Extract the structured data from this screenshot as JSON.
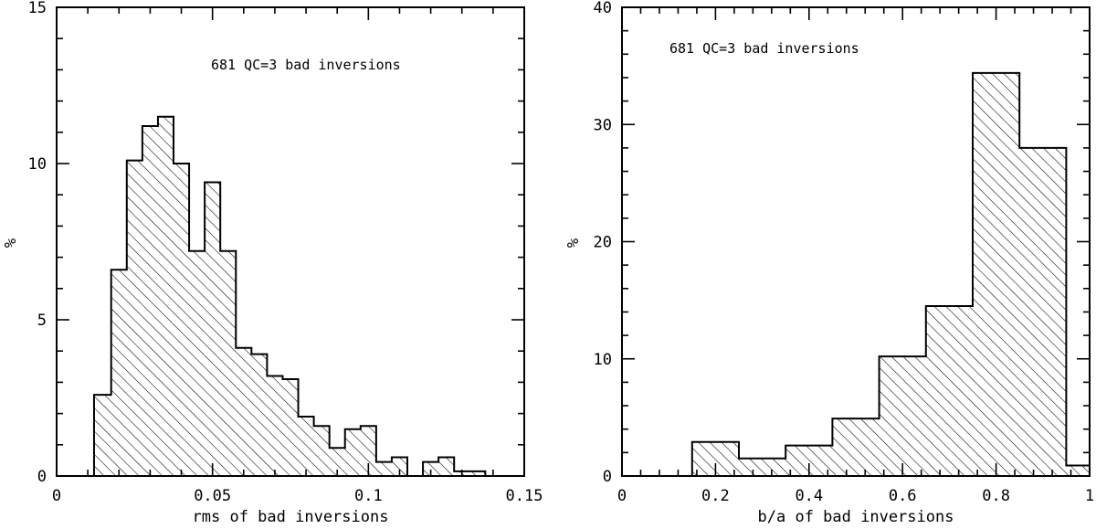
{
  "chart_data": [
    {
      "type": "histogram",
      "annotation": "681 QC=3  bad inversions",
      "xlabel": "rms of bad inversions",
      "ylabel": "%",
      "xlim": [
        0,
        0.15
      ],
      "ylim": [
        0,
        15
      ],
      "xticks": [
        0,
        0.05,
        0.1,
        0.15
      ],
      "xtick_labels": [
        "0",
        "0.05",
        "0.1",
        "0.15"
      ],
      "yticks": [
        0,
        5,
        10,
        15
      ],
      "ytick_labels": [
        "0",
        "5",
        "10",
        "15"
      ],
      "bins": [
        {
          "x0": 0.012,
          "x1": 0.0175,
          "value": 2.6
        },
        {
          "x0": 0.0175,
          "x1": 0.0225,
          "value": 6.6
        },
        {
          "x0": 0.0225,
          "x1": 0.0275,
          "value": 10.1
        },
        {
          "x0": 0.0275,
          "x1": 0.0325,
          "value": 11.2
        },
        {
          "x0": 0.0325,
          "x1": 0.0375,
          "value": 11.5
        },
        {
          "x0": 0.0375,
          "x1": 0.0425,
          "value": 10.0
        },
        {
          "x0": 0.0425,
          "x1": 0.0475,
          "value": 7.2
        },
        {
          "x0": 0.0475,
          "x1": 0.0525,
          "value": 9.4
        },
        {
          "x0": 0.0525,
          "x1": 0.0575,
          "value": 7.2
        },
        {
          "x0": 0.0575,
          "x1": 0.0625,
          "value": 4.1
        },
        {
          "x0": 0.0625,
          "x1": 0.0675,
          "value": 3.9
        },
        {
          "x0": 0.0675,
          "x1": 0.0725,
          "value": 3.2
        },
        {
          "x0": 0.0725,
          "x1": 0.0775,
          "value": 3.1
        },
        {
          "x0": 0.0775,
          "x1": 0.0825,
          "value": 1.9
        },
        {
          "x0": 0.0825,
          "x1": 0.0875,
          "value": 1.6
        },
        {
          "x0": 0.0875,
          "x1": 0.0925,
          "value": 0.9
        },
        {
          "x0": 0.0925,
          "x1": 0.0975,
          "value": 1.5
        },
        {
          "x0": 0.0975,
          "x1": 0.1025,
          "value": 1.6
        },
        {
          "x0": 0.1025,
          "x1": 0.1075,
          "value": 0.45
        },
        {
          "x0": 0.1075,
          "x1": 0.1125,
          "value": 0.6
        },
        {
          "x0": 0.1125,
          "x1": 0.1175,
          "value": 0.0
        },
        {
          "x0": 0.1175,
          "x1": 0.1225,
          "value": 0.45
        },
        {
          "x0": 0.1225,
          "x1": 0.1275,
          "value": 0.6
        },
        {
          "x0": 0.1275,
          "x1": 0.1325,
          "value": 0.15
        },
        {
          "x0": 0.1325,
          "x1": 0.1375,
          "value": 0.15
        }
      ]
    },
    {
      "type": "histogram",
      "annotation": "681 QC=3  bad inversions",
      "xlabel": "b/a of bad inversions",
      "ylabel": "%",
      "xlim": [
        0,
        1
      ],
      "ylim": [
        0,
        40
      ],
      "xticks": [
        0,
        0.2,
        0.4,
        0.6,
        0.8,
        1
      ],
      "xtick_labels": [
        "0",
        "0.2",
        "0.4",
        "0.6",
        "0.8",
        "1"
      ],
      "yticks": [
        0,
        10,
        20,
        30,
        40
      ],
      "ytick_labels": [
        "0",
        "10",
        "20",
        "30",
        "40"
      ],
      "bins": [
        {
          "x0": 0.15,
          "x1": 0.25,
          "value": 2.9
        },
        {
          "x0": 0.25,
          "x1": 0.35,
          "value": 1.5
        },
        {
          "x0": 0.35,
          "x1": 0.45,
          "value": 2.6
        },
        {
          "x0": 0.45,
          "x1": 0.55,
          "value": 4.9
        },
        {
          "x0": 0.55,
          "x1": 0.65,
          "value": 10.2
        },
        {
          "x0": 0.65,
          "x1": 0.75,
          "value": 14.5
        },
        {
          "x0": 0.75,
          "x1": 0.85,
          "value": 34.4
        },
        {
          "x0": 0.85,
          "x1": 0.95,
          "value": 28.0
        },
        {
          "x0": 0.95,
          "x1": 1.0,
          "value": 0.9
        }
      ]
    }
  ]
}
